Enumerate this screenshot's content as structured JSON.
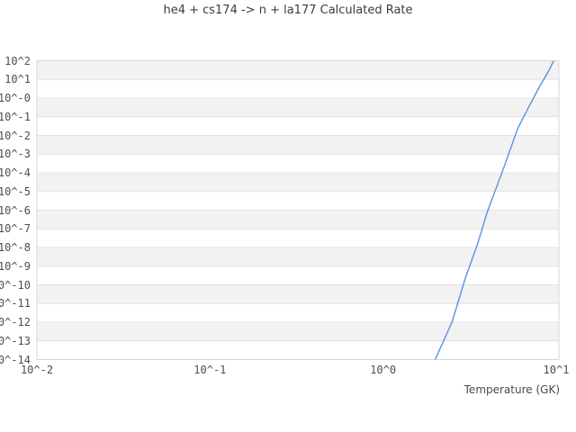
{
  "chart": {
    "title": "he4 + cs174 -> n + la177 Calculated Rate",
    "xlabel": "Temperature (GK)"
  },
  "colors": {
    "curve": "#5892e2",
    "band": "#f2f2f2",
    "gridline": "#e4e4e4",
    "border": "#d6d6d6",
    "tick_text": "#4d4d4d",
    "title_text": "#3c3c3c"
  },
  "chart_data": {
    "type": "line",
    "title": "he4 + cs174 -> n + la177 Calculated Rate",
    "xlabel": "Temperature (GK)",
    "ylabel": "",
    "x_scale": "log",
    "y_scale": "log",
    "grid": "horizontal-bands-alternating",
    "legend": "none",
    "x_tick_labels": [
      "10^-2",
      "10^-1",
      "10^0",
      "10^1"
    ],
    "x_tick_exponents": [
      -2,
      -1,
      0,
      1
    ],
    "y_tick_labels": [
      "10^2",
      "10^1",
      "10^-0",
      "10^-1",
      "10^-2",
      "10^-3",
      "10^-4",
      "10^-5",
      "10^-6",
      "10^-7",
      "10^-8",
      "10^-9",
      "10^-10",
      "10^-11",
      "10^-12",
      "10^-13",
      "10^-14"
    ],
    "y_tick_exponents": [
      2,
      1,
      0,
      -1,
      -2,
      -3,
      -4,
      -5,
      -6,
      -7,
      -8,
      -9,
      -10,
      -11,
      -12,
      -13,
      -14
    ],
    "x_range_log": [
      -2,
      1.0156
    ],
    "y_range_log": [
      -14,
      2
    ],
    "series": [
      {
        "name": "calculated-rate",
        "color": "#5892e2",
        "x": [
          2,
          2.5,
          3,
          3.5,
          4,
          5,
          6,
          7,
          8,
          9,
          10
        ],
        "y": [
          1e-14,
          1e-12,
          2.6e-10,
          1.4e-08,
          8e-07,
          0.00021,
          0.024,
          0.39,
          4.0,
          26,
          185
        ]
      }
    ]
  }
}
